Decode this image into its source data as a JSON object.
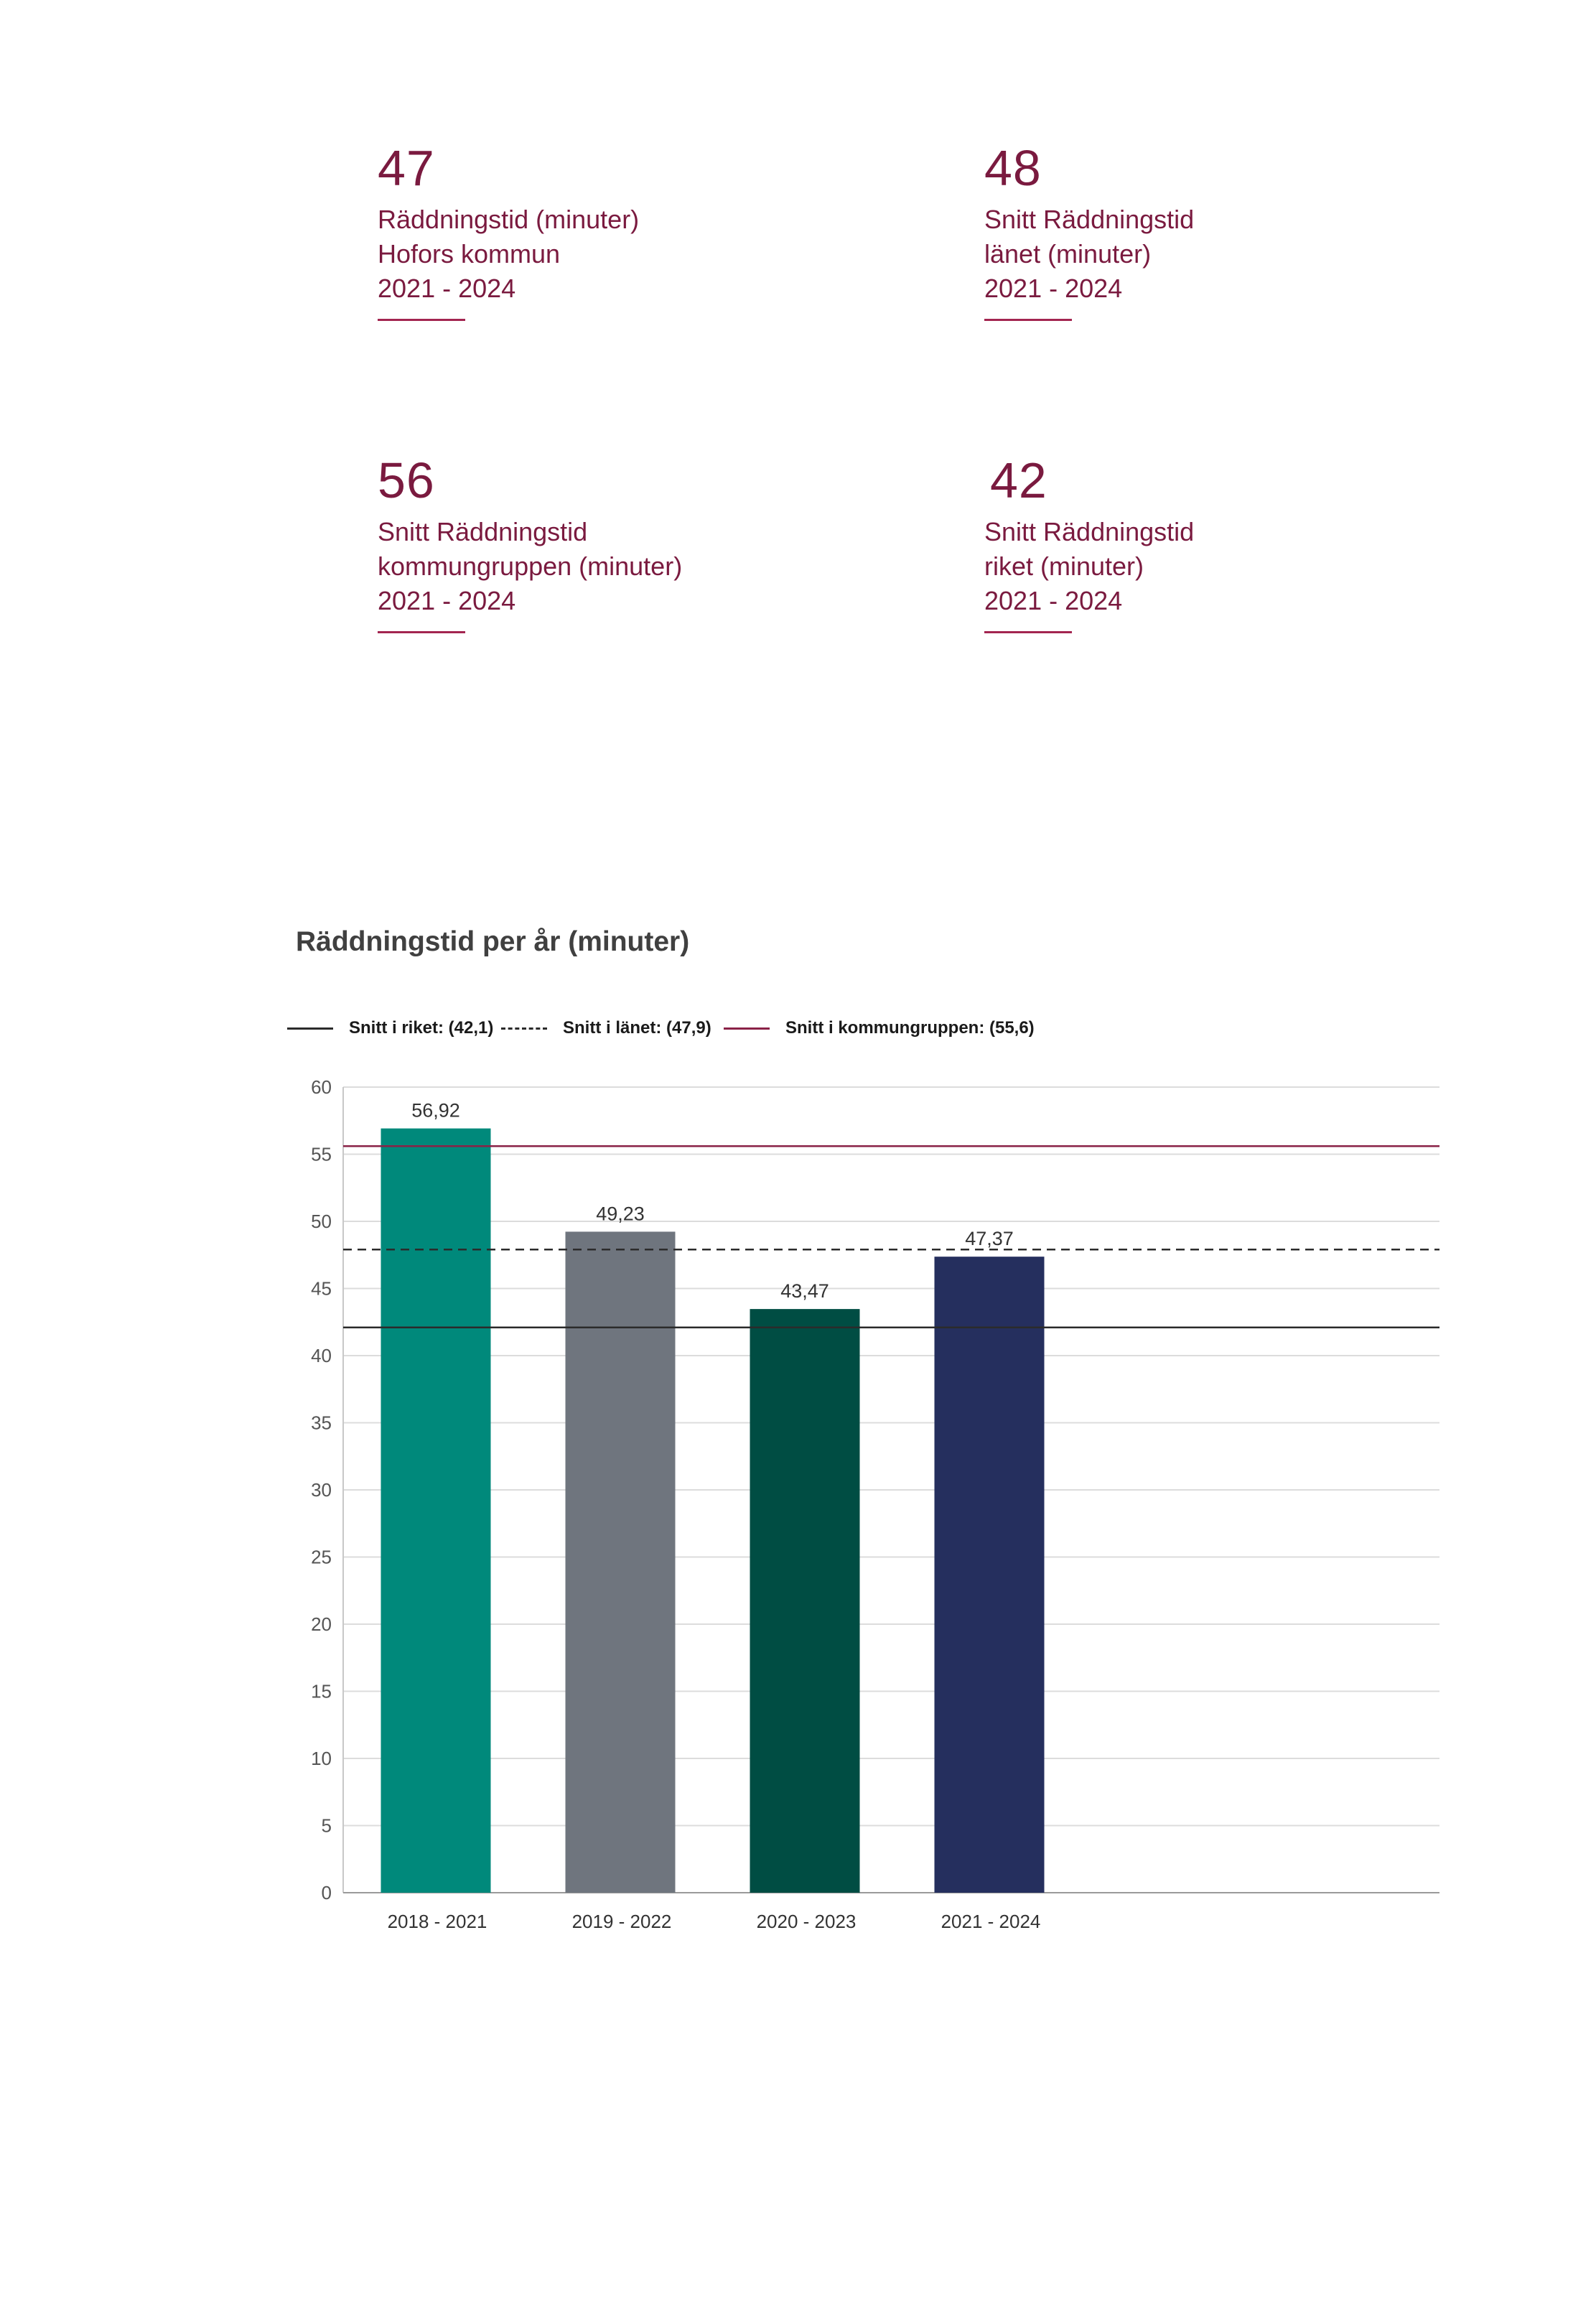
{
  "kpis": [
    {
      "value": "47",
      "lines": [
        "Räddningstid (minuter)",
        "Hofors kommun",
        "2021 - 2024"
      ]
    },
    {
      "value": "48",
      "lines": [
        "Snitt Räddningstid",
        "länet (minuter)",
        "2021 - 2024"
      ]
    },
    {
      "value": "56",
      "lines": [
        "Snitt Räddningstid",
        "kommungruppen (minuter)",
        "2021 - 2024"
      ]
    },
    {
      "value": "42",
      "lines": [
        "Snitt Räddningstid",
        "riket (minuter)",
        "2021 - 2024"
      ]
    }
  ],
  "colors": {
    "accent": "#7a1a3f",
    "bars": [
      "#00897b",
      "#6f757e",
      "#004d43",
      "#252f5e"
    ],
    "riket_line": "#2b2b2b",
    "lanet_line": "#2b2b2b",
    "kommungrupp_line": "#8a2247",
    "grid": "#dcdcdc"
  },
  "chart_data": {
    "type": "bar",
    "title": "Räddningstid per år (minuter)",
    "categories": [
      "2018 - 2021",
      "2019 - 2022",
      "2020 - 2023",
      "2021 - 2024"
    ],
    "values": [
      56.92,
      49.23,
      43.47,
      47.37
    ],
    "value_labels": [
      "56,92",
      "49,23",
      "43,47",
      "47,37"
    ],
    "ylim": [
      0,
      60
    ],
    "yticks": [
      0,
      5,
      10,
      15,
      20,
      25,
      30,
      35,
      40,
      45,
      50,
      55,
      60
    ],
    "grid": true,
    "legend_position": "top-left",
    "reference_lines": [
      {
        "label": "Snitt i riket: (42,1)",
        "value": 42.1,
        "style": "solid"
      },
      {
        "label": "Snitt i länet: (47,9)",
        "value": 47.9,
        "style": "dashed"
      },
      {
        "label": "Snitt i kommungruppen: (55,6)",
        "value": 55.6,
        "style": "solid"
      }
    ]
  }
}
